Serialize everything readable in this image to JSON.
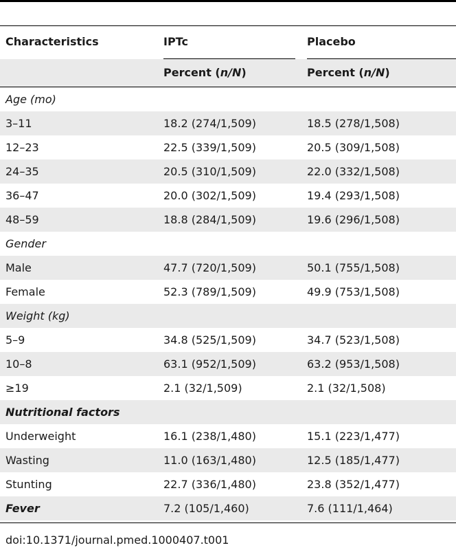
{
  "table": {
    "headers": [
      "Characteristics",
      "IPTc",
      "Placebo"
    ],
    "subheaders": [
      {
        "prefix": "Percent (",
        "italic": "n/N",
        "suffix": ")"
      },
      {
        "prefix": "Percent (",
        "italic": "n/N",
        "suffix": ")"
      }
    ],
    "rows": [
      {
        "label": "Age (mo)",
        "style": "italic",
        "iptc": "",
        "placebo": ""
      },
      {
        "label": "3–11",
        "style": "normal",
        "iptc": "18.2 (274/1,509)",
        "placebo": "18.5 (278/1,508)"
      },
      {
        "label": "12–23",
        "style": "normal",
        "iptc": "22.5 (339/1,509)",
        "placebo": "20.5 (309/1,508)"
      },
      {
        "label": "24–35",
        "style": "normal",
        "iptc": "20.5 (310/1,509)",
        "placebo": "22.0 (332/1,508)"
      },
      {
        "label": "36–47",
        "style": "normal",
        "iptc": "20.0 (302/1,509)",
        "placebo": "19.4 (293/1,508)"
      },
      {
        "label": "48–59",
        "style": "normal",
        "iptc": "18.8 (284/1,509)",
        "placebo": "19.6 (296/1,508)"
      },
      {
        "label": "Gender",
        "style": "italic",
        "iptc": "",
        "placebo": ""
      },
      {
        "label": "Male",
        "style": "normal",
        "iptc": "47.7 (720/1,509)",
        "placebo": "50.1 (755/1,508)"
      },
      {
        "label": "Female",
        "style": "normal",
        "iptc": "52.3 (789/1,509)",
        "placebo": "49.9 (753/1,508)"
      },
      {
        "label": "Weight (kg)",
        "style": "italic",
        "iptc": "",
        "placebo": ""
      },
      {
        "label": "5–9",
        "style": "normal",
        "iptc": "34.8 (525/1,509)",
        "placebo": "34.7 (523/1,508)"
      },
      {
        "label": "10–8",
        "style": "normal",
        "iptc": "63.1 (952/1,509)",
        "placebo": "63.2 (953/1,508)"
      },
      {
        "label": "≥19",
        "style": "normal",
        "iptc": "2.1 (32/1,509)",
        "placebo": "2.1 (32/1,508)"
      },
      {
        "label": "Nutritional factors",
        "style": "bolditalic",
        "iptc": "",
        "placebo": ""
      },
      {
        "label": "Underweight",
        "style": "normal",
        "iptc": "16.1 (238/1,480)",
        "placebo": "15.1 (223/1,477)"
      },
      {
        "label": "Wasting",
        "style": "normal",
        "iptc": "11.0 (163/1,480)",
        "placebo": "12.5 (185/1,477)"
      },
      {
        "label": "Stunting",
        "style": "normal",
        "iptc": "22.7 (336/1,480)",
        "placebo": "23.8 (352/1,477)"
      },
      {
        "label": "Fever",
        "style": "bolditalic",
        "iptc": "7.2 (105/1,460)",
        "placebo": "7.6 (111/1,464)"
      }
    ]
  },
  "footer": "doi:10.1371/journal.pmed.1000407.t001"
}
